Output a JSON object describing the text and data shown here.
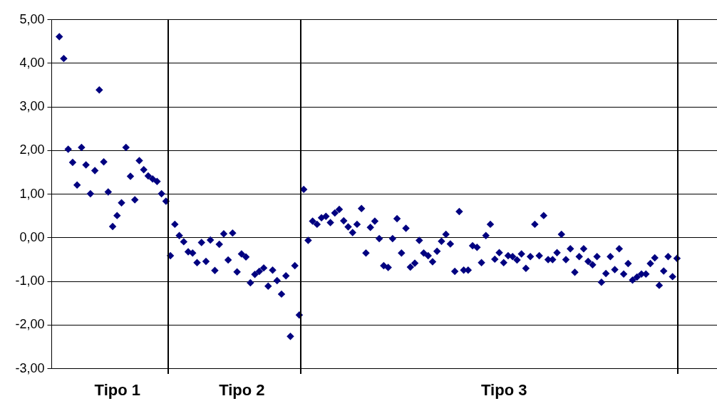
{
  "chart_data": {
    "type": "scatter",
    "categories": [
      null,
      null,
      null,
      null,
      null,
      null,
      null,
      null,
      null,
      null,
      null,
      null,
      null,
      "Tipo 1",
      null,
      null,
      null,
      null,
      null,
      null,
      null,
      null,
      null,
      null,
      null,
      null,
      null,
      null,
      null,
      null,
      null,
      null,
      null,
      null,
      null,
      null,
      null,
      null,
      null,
      null,
      null,
      "Tipo 2",
      null,
      null,
      null,
      null,
      null,
      null,
      null,
      null,
      null,
      null,
      null,
      null,
      null,
      null,
      null,
      null,
      null,
      null,
      null,
      null,
      null,
      null,
      null,
      null,
      null,
      null,
      null,
      null,
      null,
      null,
      null,
      null,
      null,
      null,
      null,
      null,
      null,
      null,
      null,
      null,
      null,
      null,
      null,
      null,
      null,
      null,
      null,
      null,
      null,
      null,
      null,
      null,
      null,
      null,
      null,
      null,
      null,
      null,
      "Tipo 3",
      null,
      null,
      null,
      null,
      null,
      null,
      null,
      null,
      null,
      null,
      null,
      null,
      null,
      null,
      null,
      null,
      null,
      null,
      null,
      null,
      null,
      null,
      null,
      null,
      null,
      null,
      null,
      null,
      null,
      null,
      null,
      null,
      null,
      null,
      null,
      null,
      null,
      null,
      null
    ],
    "series": [
      {
        "color": "#000080",
        "values": [
          4.6,
          4.1,
          2.02,
          1.72,
          1.2,
          2.06,
          1.66,
          1.0,
          1.53,
          3.38,
          1.73,
          1.04,
          0.25,
          0.5,
          0.79,
          2.06,
          1.4,
          0.86,
          1.76,
          1.55,
          1.41,
          1.34,
          1.28,
          1.0,
          0.83,
          -0.42,
          0.3,
          0.04,
          -0.1,
          -0.33,
          -0.36,
          -0.58,
          -0.12,
          -0.55,
          -0.06,
          -0.76,
          -0.16,
          0.08,
          -0.52,
          0.1,
          -0.79,
          -0.38,
          -0.45,
          -1.04,
          -0.85,
          -0.78,
          -0.7,
          -1.12,
          -0.75,
          -0.99,
          -1.3,
          -0.88,
          -2.27,
          -0.65,
          -1.78,
          1.1,
          -0.07,
          0.37,
          0.3,
          0.45,
          0.48,
          0.34,
          0.56,
          0.64,
          0.38,
          0.24,
          0.11,
          0.3,
          0.66,
          -0.36,
          0.23,
          0.37,
          -0.03,
          -0.65,
          -0.69,
          -0.03,
          0.43,
          -0.36,
          0.21,
          -0.68,
          -0.59,
          -0.07,
          -0.36,
          -0.42,
          -0.56,
          -0.32,
          -0.09,
          0.07,
          -0.15,
          -0.78,
          0.59,
          -0.75,
          -0.75,
          -0.19,
          -0.23,
          -0.58,
          0.04,
          0.3,
          -0.5,
          -0.35,
          -0.58,
          -0.42,
          -0.44,
          -0.52,
          -0.38,
          -0.71,
          -0.44,
          0.3,
          -0.42,
          0.5,
          -0.51,
          -0.51,
          -0.35,
          0.07,
          -0.51,
          -0.26,
          -0.8,
          -0.44,
          -0.26,
          -0.55,
          -0.63,
          -0.44,
          -1.03,
          -0.83,
          -0.44,
          -0.74,
          -0.26,
          -0.84,
          -0.6,
          -0.98,
          -0.91,
          -0.84,
          -0.84,
          -0.6,
          -0.47,
          -1.1,
          -0.77,
          -0.44,
          -0.9,
          -0.48
        ]
      }
    ],
    "ylim": [
      -3,
      5
    ],
    "yticks": [
      {
        "value": -3,
        "label": "-3,00"
      },
      {
        "value": -2,
        "label": "-2,00"
      },
      {
        "value": -1,
        "label": "-1,00"
      },
      {
        "value": 0,
        "label": "0,00"
      },
      {
        "value": 1,
        "label": "1,00"
      },
      {
        "value": 2,
        "label": "2,00"
      },
      {
        "value": 3,
        "label": "3,00"
      },
      {
        "value": 4,
        "label": "4,00"
      },
      {
        "value": 5,
        "label": "5,00"
      }
    ],
    "grid": "y",
    "marker": "diamond"
  }
}
